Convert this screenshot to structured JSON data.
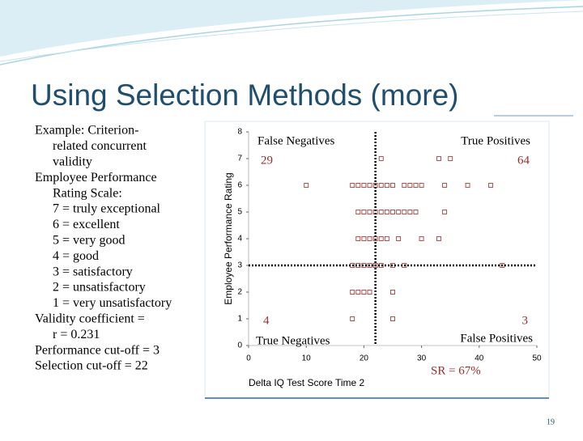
{
  "title": "Using Selection Methods (more)",
  "body": [
    {
      "level": 0,
      "lines": [
        "Example: Criterion-",
        "related concurrent",
        "validity"
      ]
    },
    {
      "level": 0,
      "lines": [
        "Employee Performance",
        "Rating Scale:"
      ]
    },
    {
      "level": 1,
      "lines": [
        "7 = truly exceptional"
      ]
    },
    {
      "level": 1,
      "lines": [
        "6 = excellent"
      ]
    },
    {
      "level": 1,
      "lines": [
        "5 = very good"
      ]
    },
    {
      "level": 1,
      "lines": [
        "4 = good"
      ]
    },
    {
      "level": 1,
      "lines": [
        "3 = satisfactory"
      ]
    },
    {
      "level": 1,
      "lines": [
        "2 = unsatisfactory"
      ]
    },
    {
      "level": 1,
      "lines": [
        "1 = very unsatisfactory"
      ]
    },
    {
      "level": 0,
      "lines": [
        "Validity coefficient =",
        "r = 0.231"
      ]
    },
    {
      "level": 0,
      "lines": [
        "Performance cut-off = 3"
      ]
    },
    {
      "level": 0,
      "lines": [
        "Selection cut-off = 22"
      ]
    }
  ],
  "page_number": "19",
  "chart_data": {
    "type": "scatter",
    "x_label": "Delta IQ Test Score Time 2",
    "y_label": "Employee Performance Rating",
    "color": "#b5504f",
    "x": [
      23,
      33,
      35,
      10,
      18,
      19,
      20,
      21,
      22,
      23,
      24,
      25,
      27,
      28,
      29,
      30,
      34,
      38,
      42,
      19,
      20,
      21,
      22,
      23,
      24,
      25,
      26,
      27,
      28,
      29,
      34,
      19,
      20,
      21,
      22,
      23,
      24,
      26,
      30,
      33,
      18,
      19,
      20,
      21,
      22,
      23,
      25,
      27,
      44,
      18,
      19,
      20,
      21,
      25,
      18,
      25
    ],
    "values": [
      7,
      7,
      7,
      6,
      6,
      6,
      6,
      6,
      6,
      6,
      6,
      6,
      6,
      6,
      6,
      6,
      6,
      6,
      6,
      5,
      5,
      5,
      5,
      5,
      5,
      5,
      5,
      5,
      5,
      5,
      5,
      4,
      4,
      4,
      4,
      4,
      4,
      4,
      4,
      4,
      3,
      3,
      3,
      3,
      3,
      3,
      3,
      3,
      3,
      2,
      2,
      2,
      2,
      2,
      1,
      1
    ],
    "xlim": [
      0,
      50
    ],
    "xticks": [
      0,
      10,
      20,
      30,
      40,
      50
    ],
    "ylim": [
      0,
      8
    ],
    "yticks": [
      0,
      1,
      2,
      3,
      4,
      5,
      6,
      7,
      8
    ],
    "cutoff_x": 22,
    "cutoff_y": 3,
    "annotations": [
      "False Negatives",
      "29",
      "True Positives",
      "64",
      "4",
      "True Negatives",
      "3",
      "False Positives",
      "SR = 67%"
    ]
  }
}
